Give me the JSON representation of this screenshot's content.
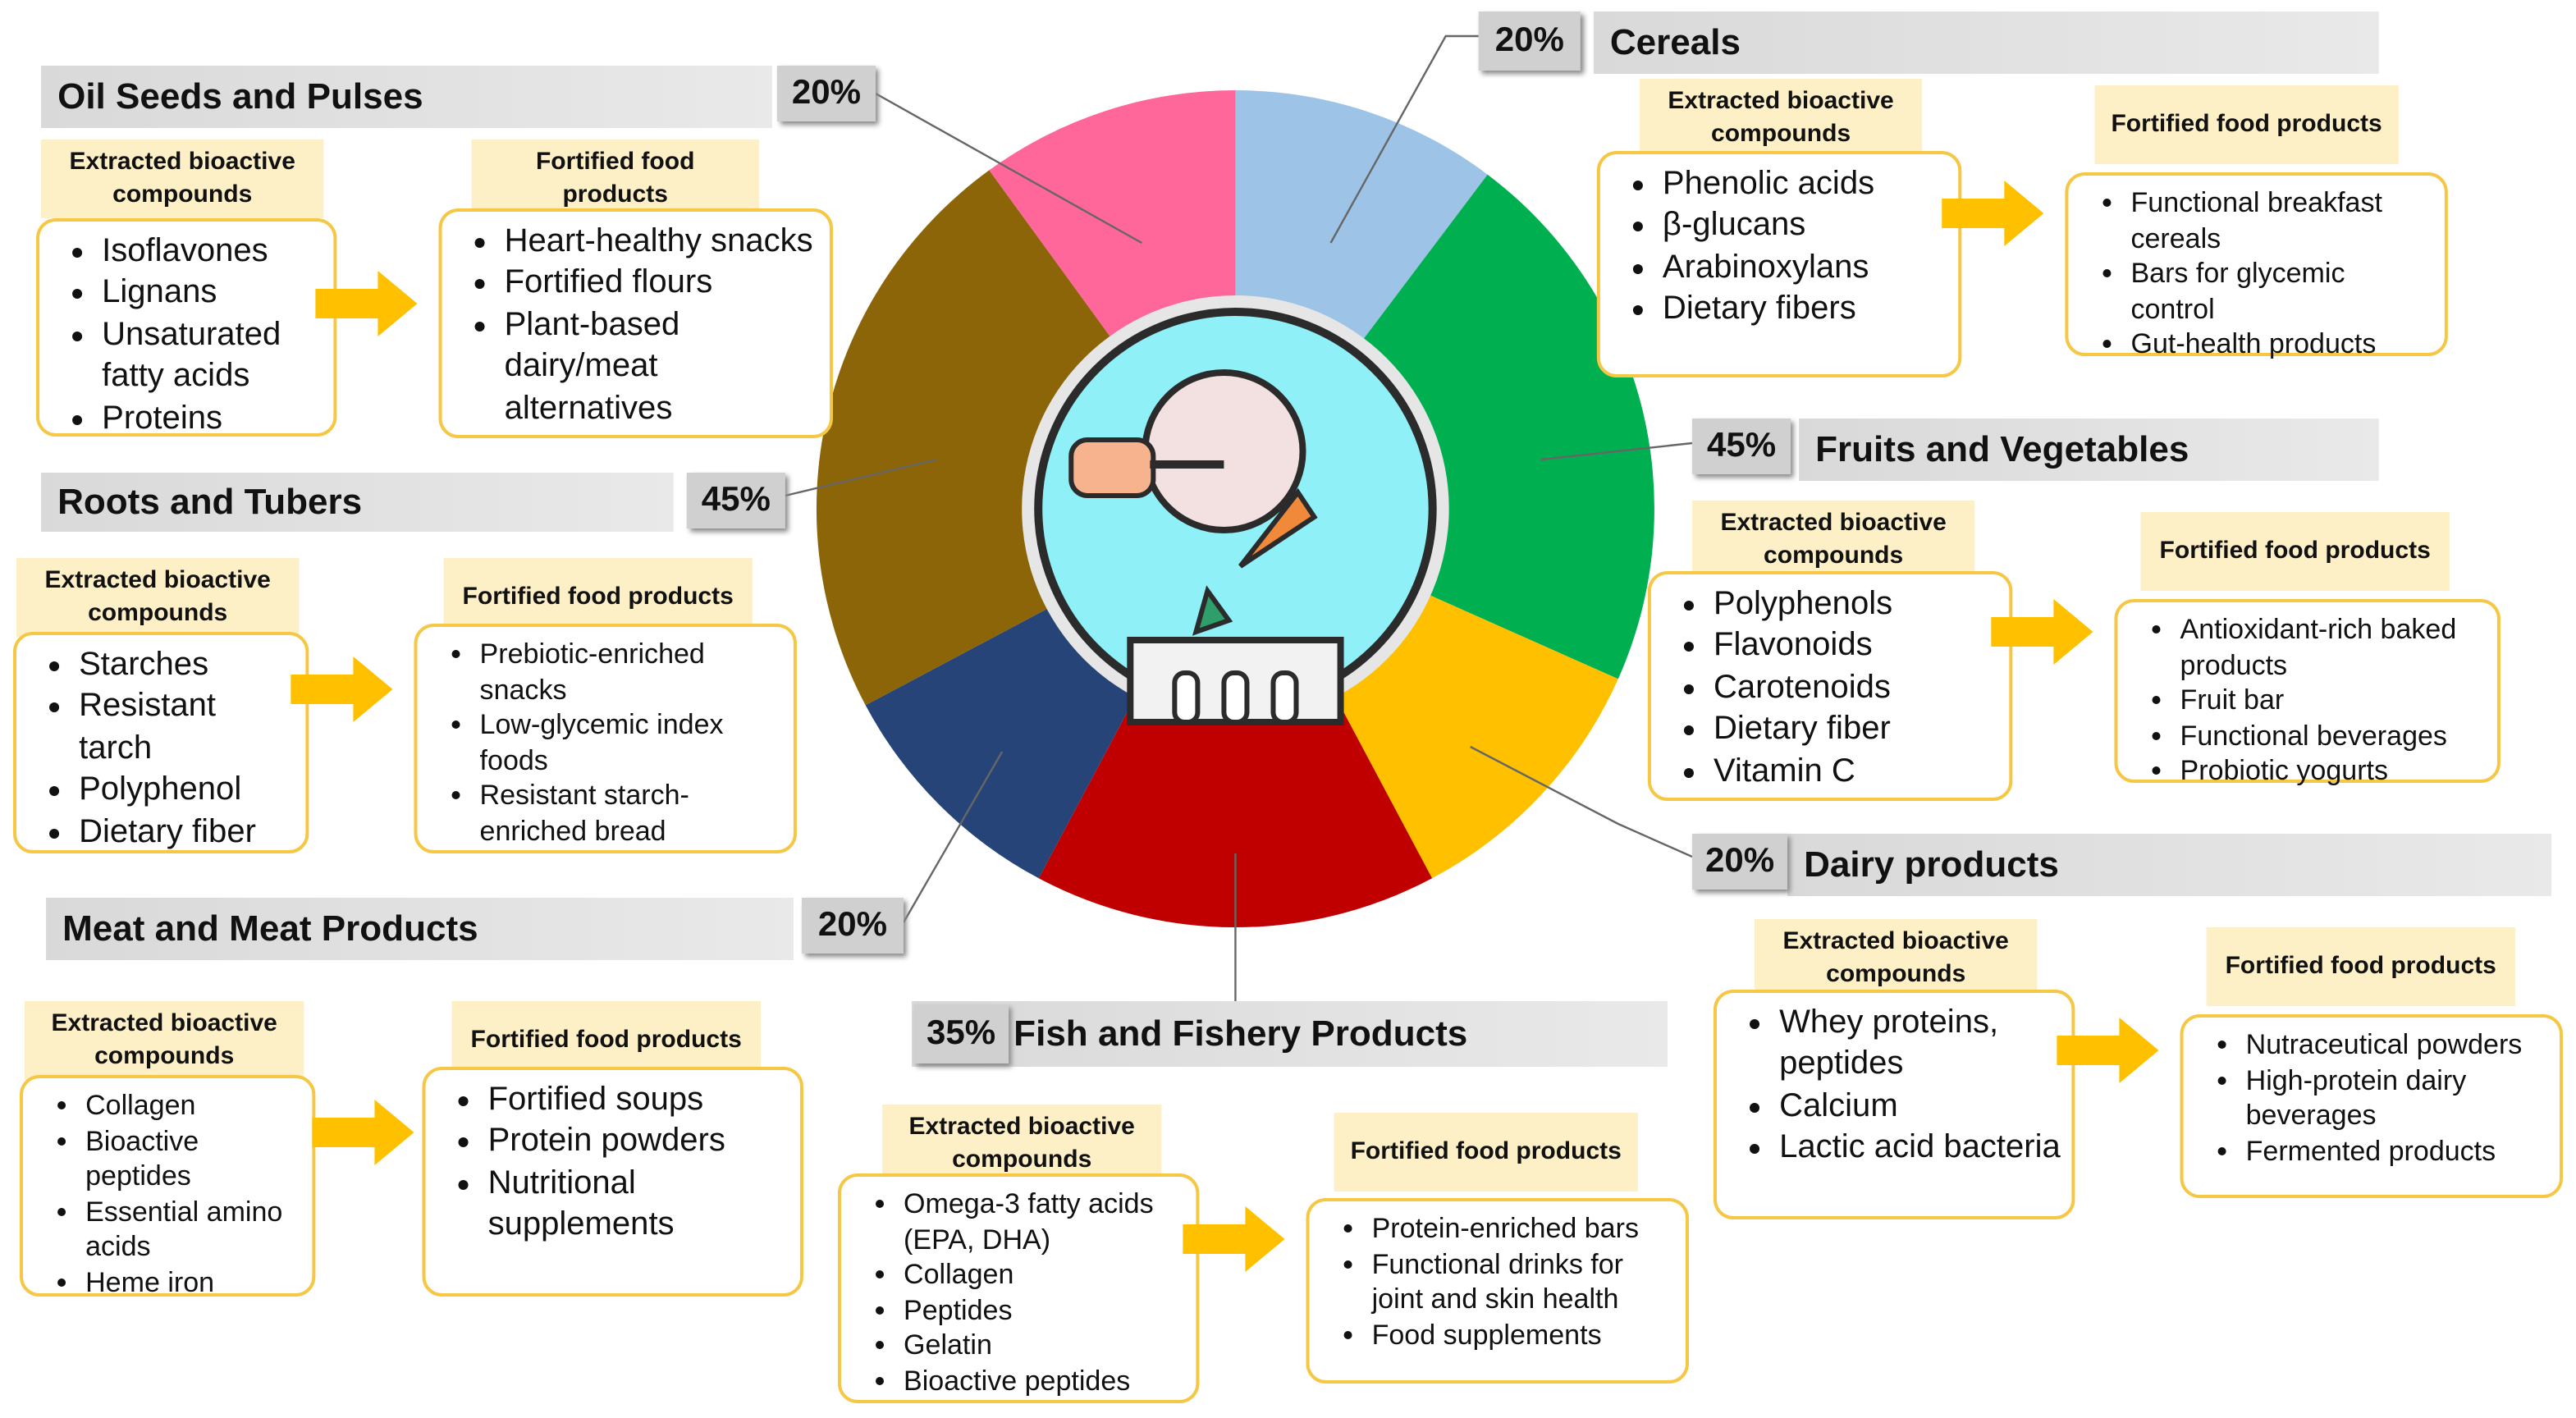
{
  "sections": [
    {
      "title": "Oil Seeds and Pulses",
      "percent": "20%",
      "compounds_header": "Extracted bioactive compounds",
      "compounds": [
        "Isoflavones",
        "Lignans",
        "Unsaturated fatty acids",
        "Proteins"
      ],
      "products_header": "Fortified food products",
      "products": [
        "Heart-healthy snacks",
        "Fortified flours",
        "Plant-based dairy/meat alternatives"
      ]
    },
    {
      "title": "Roots and Tubers",
      "percent": "45%",
      "compounds_header": "Extracted bioactive compounds",
      "compounds": [
        "Starches",
        "Resistant tarch",
        "Polyphenol",
        "Dietary fiber"
      ],
      "products_header": "Fortified food products",
      "products": [
        "Prebiotic-enriched snacks",
        "Low-glycemic index foods",
        "Resistant starch-enriched bread"
      ]
    },
    {
      "title": "Meat and Meat Products",
      "percent": "20%",
      "compounds_header": "Extracted bioactive compounds",
      "compounds": [
        "Collagen",
        "Bioactive peptides",
        "Essential amino acids",
        "Heme iron"
      ],
      "products_header": "Fortified food products",
      "products": [
        "Fortified soups",
        "Protein powders",
        "Nutritional supplements"
      ]
    },
    {
      "title": "Fish and Fishery Products",
      "percent": "35%",
      "compounds_header": "Extracted bioactive compounds",
      "compounds": [
        "Omega-3 fatty acids (EPA, DHA)",
        "Collagen",
        "Peptides",
        "Gelatin",
        "Bioactive peptides"
      ],
      "products_header": "Fortified food products",
      "products": [
        "Protein-enriched bars",
        "Functional drinks for joint and skin health",
        "Food supplements"
      ]
    },
    {
      "title": "Cereals",
      "percent": "20%",
      "compounds_header": "Extracted bioactive compounds",
      "compounds": [
        "Phenolic acids",
        "β-glucans",
        "Arabinoxylans",
        "Dietary fibers"
      ],
      "products_header": "Fortified food products",
      "products": [
        "Functional breakfast cereals",
        "Bars for glycemic control",
        "Gut-health products"
      ]
    },
    {
      "title": "Fruits and Vegetables",
      "percent": "45%",
      "compounds_header": "Extracted bioactive compounds",
      "compounds": [
        "Polyphenols",
        "Flavonoids",
        "Carotenoids",
        "Dietary fiber",
        "Vitamin C"
      ],
      "products_header": "Fortified food products",
      "products": [
        "Antioxidant-rich baked products",
        "Fruit bar",
        "Functional beverages",
        "Probiotic yogurts"
      ]
    },
    {
      "title": "Dairy products",
      "percent": "20%",
      "compounds_header": "Extracted bioactive compounds",
      "compounds": [
        "Whey proteins, peptides",
        "Calcium",
        "Lactic acid bacteria"
      ],
      "products_header": "Fortified food products",
      "products": [
        "Nutraceutical powders",
        "High-protein dairy beverages",
        "Fermented products"
      ]
    }
  ]
}
